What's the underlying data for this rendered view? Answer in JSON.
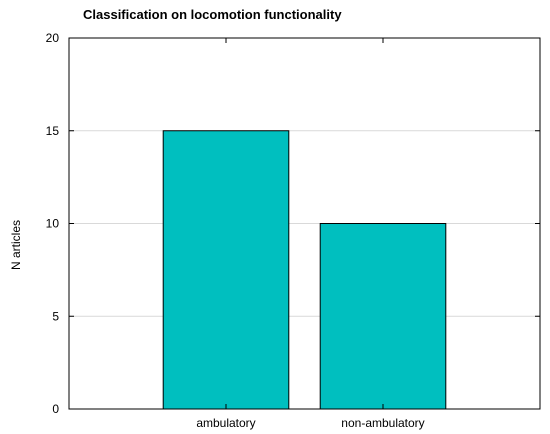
{
  "chart_data": {
    "type": "bar",
    "title": "Classification on locomotion functionality",
    "xlabel": "",
    "ylabel": "N articles",
    "categories": [
      "ambulatory",
      "non-ambulatory"
    ],
    "values": [
      15,
      10
    ],
    "ylim": [
      0,
      20
    ],
    "yticks": [
      "0",
      "5",
      "10",
      "15",
      "20"
    ],
    "grid": "horizontal",
    "bar_color": "#00bfbf",
    "bar_edge_color": "#000000"
  }
}
